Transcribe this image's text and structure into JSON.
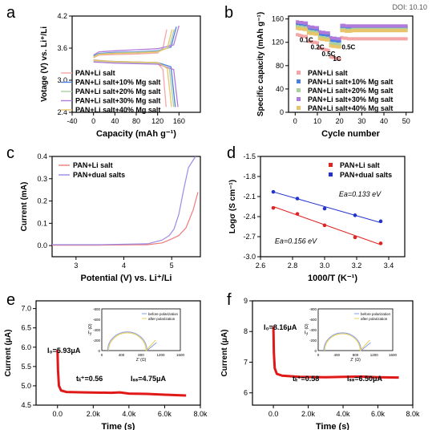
{
  "doi": "DOI: 10.10",
  "chart_data": [
    {
      "panel": "a",
      "type": "line",
      "xlabel": "Capacity (mAh g⁻¹)",
      "ylabel": "Votage (V) vs. Li⁺/Li",
      "xlim": [
        -40,
        200
      ],
      "ylim": [
        2.4,
        4.2
      ],
      "xticks": [
        "-40",
        "0",
        "40",
        "80",
        "120",
        "160"
      ],
      "yticks": [
        "2.4",
        "3.0",
        "3.6",
        "4.2"
      ],
      "legend_position": "bottom-left",
      "colors": [
        "#f4a6a6",
        "#4a7fe0",
        "#a9d19e",
        "#b07adb",
        "#e8c56a"
      ],
      "series": [
        {
          "name": "PAN+Li salt",
          "charge": [
            [
              0,
              3.42
            ],
            [
              10,
              3.47
            ],
            [
              40,
              3.48
            ],
            [
              80,
              3.49
            ],
            [
              120,
              3.51
            ],
            [
              130,
              3.6
            ],
            [
              137,
              3.95
            ]
          ],
          "discharge": [
            [
              0,
              3.38
            ],
            [
              40,
              3.35
            ],
            [
              80,
              3.34
            ],
            [
              120,
              3.32
            ],
            [
              130,
              3.2
            ],
            [
              136,
              2.5
            ]
          ]
        },
        {
          "name": "PAN+Li salt+10% Mg salt",
          "charge": [
            [
              0,
              3.45
            ],
            [
              10,
              3.5
            ],
            [
              40,
              3.52
            ],
            [
              80,
              3.53
            ],
            [
              120,
              3.55
            ],
            [
              145,
              3.62
            ],
            [
              155,
              4.0
            ]
          ],
          "discharge": [
            [
              0,
              3.37
            ],
            [
              40,
              3.35
            ],
            [
              80,
              3.34
            ],
            [
              120,
              3.33
            ],
            [
              145,
              3.25
            ],
            [
              153,
              2.5
            ]
          ]
        },
        {
          "name": "PAN+Li salt+20% Mg salt",
          "charge": [
            [
              0,
              3.44
            ],
            [
              10,
              3.49
            ],
            [
              40,
              3.51
            ],
            [
              80,
              3.52
            ],
            [
              120,
              3.54
            ],
            [
              142,
              3.62
            ],
            [
              151,
              3.95
            ]
          ],
          "discharge": [
            [
              0,
              3.36
            ],
            [
              40,
              3.34
            ],
            [
              80,
              3.33
            ],
            [
              120,
              3.32
            ],
            [
              142,
              3.22
            ],
            [
              150,
              2.5
            ]
          ]
        },
        {
          "name": "PAN+Li salt+30% Mg salt",
          "charge": [
            [
              0,
              3.47
            ],
            [
              10,
              3.53
            ],
            [
              40,
              3.55
            ],
            [
              80,
              3.57
            ],
            [
              120,
              3.59
            ],
            [
              150,
              3.66
            ],
            [
              160,
              4.02
            ]
          ],
          "discharge": [
            [
              0,
              3.34
            ],
            [
              40,
              3.32
            ],
            [
              80,
              3.31
            ],
            [
              120,
              3.3
            ],
            [
              150,
              3.2
            ],
            [
              158,
              2.5
            ]
          ]
        },
        {
          "name": "PAN+Li salt+40% Mg salt",
          "charge": [
            [
              0,
              3.43
            ],
            [
              10,
              3.48
            ],
            [
              40,
              3.5
            ],
            [
              80,
              3.51
            ],
            [
              120,
              3.53
            ],
            [
              138,
              3.6
            ],
            [
              147,
              3.95
            ]
          ],
          "discharge": [
            [
              0,
              3.37
            ],
            [
              40,
              3.35
            ],
            [
              80,
              3.34
            ],
            [
              120,
              3.33
            ],
            [
              138,
              3.22
            ],
            [
              146,
              2.5
            ]
          ]
        }
      ]
    },
    {
      "panel": "b",
      "type": "scatter",
      "xlabel": "Cycle number",
      "ylabel": "Specific capacity (mAh g⁻¹)",
      "xlim": [
        -3,
        53
      ],
      "ylim": [
        0,
        165
      ],
      "xticks": [
        "0",
        "10",
        "20",
        "30",
        "40",
        "50"
      ],
      "yticks": [
        "0",
        "40",
        "80",
        "120",
        "160"
      ],
      "legend_position": "bottom-right",
      "rate_labels": [
        "0.1C",
        "0.2C",
        "0.5C",
        "1C",
        "0.5C"
      ],
      "colors": [
        "#f4a6a6",
        "#4a7fe0",
        "#a9d19e",
        "#b07adb",
        "#e8c56a"
      ],
      "series": [
        {
          "name": "PAN+Li salt",
          "blocks": [
            [
              133,
              132,
              131,
              130,
              130
            ],
            [
              122,
              121,
              120,
              120,
              119
            ],
            [
              110,
              109,
              108,
              107,
              106
            ],
            [
              95,
              94,
              93,
              92,
              91
            ],
            [
              128,
              127,
              127,
              126,
              126
            ]
          ],
          "tail": 126
        },
        {
          "name": "PAN+Li salt+10% Mg salt",
          "blocks": [
            [
              150,
              149,
              149,
              148,
              148
            ],
            [
              143,
              142,
              142,
              141,
              141
            ],
            [
              134,
              133,
              133,
              132,
              132
            ],
            [
              124,
              123,
              123,
              122,
              122
            ],
            [
              145,
              145,
              144,
              144,
              144
            ]
          ],
          "tail": 145
        },
        {
          "name": "PAN+Li salt+20% Mg salt",
          "blocks": [
            [
              147,
              146,
              146,
              145,
              145
            ],
            [
              139,
              138,
              138,
              137,
              137
            ],
            [
              129,
              128,
              128,
              127,
              127
            ],
            [
              118,
              117,
              117,
              116,
              116
            ],
            [
              142,
              142,
              141,
              141,
              141
            ]
          ],
          "tail": 142
        },
        {
          "name": "PAN+Li salt+30% Mg salt",
          "blocks": [
            [
              155,
              154,
              154,
              153,
              153
            ],
            [
              147,
              146,
              146,
              145,
              145
            ],
            [
              138,
              137,
              137,
              136,
              136
            ],
            [
              128,
              127,
              127,
              126,
              126
            ],
            [
              149,
              149,
              148,
              148,
              148
            ]
          ],
          "tail": 148
        },
        {
          "name": "PAN+Li salt+40% Mg salt",
          "blocks": [
            [
              144,
              143,
              143,
              142,
              142
            ],
            [
              136,
              135,
              135,
              134,
              134
            ],
            [
              126,
              125,
              125,
              124,
              124
            ],
            [
              114,
              113,
              113,
              112,
              112
            ],
            [
              140,
              140,
              139,
              139,
              139
            ]
          ],
          "tail": 140
        }
      ]
    },
    {
      "panel": "c",
      "type": "line",
      "xlabel": "Potential (V) vs. Li⁺/Li",
      "ylabel": "Current (mA)",
      "xlim": [
        2.5,
        5.6
      ],
      "ylim": [
        -0.05,
        0.4
      ],
      "xticks": [
        "3",
        "4",
        "5"
      ],
      "yticks": [
        "0.0",
        "0.1",
        "0.2",
        "0.3",
        "0.4"
      ],
      "legend_position": "top-left",
      "colors": [
        "#f07a7a",
        "#9a8ce6"
      ],
      "series": [
        {
          "name": "PAN+Li salt",
          "points": [
            [
              2.5,
              0.002
            ],
            [
              3.5,
              0.002
            ],
            [
              4.5,
              0.004
            ],
            [
              4.8,
              0.012
            ],
            [
              5.0,
              0.03
            ],
            [
              5.15,
              0.045
            ],
            [
              5.3,
              0.08
            ],
            [
              5.45,
              0.16
            ],
            [
              5.55,
              0.24
            ]
          ]
        },
        {
          "name": "PAN+dual salts",
          "points": [
            [
              2.5,
              0.004
            ],
            [
              3.5,
              0.004
            ],
            [
              4.5,
              0.008
            ],
            [
              4.8,
              0.025
            ],
            [
              4.95,
              0.045
            ],
            [
              5.05,
              0.075
            ],
            [
              5.15,
              0.14
            ],
            [
              5.25,
              0.25
            ],
            [
              5.35,
              0.35
            ],
            [
              5.5,
              0.4
            ]
          ]
        }
      ]
    },
    {
      "panel": "d",
      "type": "scatter",
      "xlabel": "1000/T (K⁻¹)",
      "ylabel": "Logσ (S cm⁻¹)",
      "xlim": [
        2.6,
        3.5
      ],
      "ylim": [
        -3.0,
        -1.5
      ],
      "xticks": [
        "2.6",
        "2.8",
        "3.0",
        "3.2",
        "3.4"
      ],
      "yticks": [
        "-3.0",
        "-2.7",
        "-2.4",
        "-2.1",
        "-1.8",
        "-1.5"
      ],
      "legend_position": "top-right",
      "colors": [
        "#e02424",
        "#2233cc"
      ],
      "annotations": [
        {
          "text": "Ea=0.133 eV",
          "x": 3.22,
          "y": -2.1
        },
        {
          "text": "Ea=0.156 eV",
          "x": 2.82,
          "y": -2.8
        }
      ],
      "series": [
        {
          "name": "PAN+Li salt",
          "points": [
            [
              2.68,
              -2.27
            ],
            [
              2.83,
              -2.36
            ],
            [
              3.0,
              -2.53
            ],
            [
              3.19,
              -2.71
            ],
            [
              3.35,
              -2.8
            ]
          ],
          "fit": [
            [
              2.68,
              -2.25
            ],
            [
              3.35,
              -2.82
            ]
          ]
        },
        {
          "name": "PAN+dual salts",
          "points": [
            [
              2.68,
              -2.03
            ],
            [
              2.83,
              -2.13
            ],
            [
              3.0,
              -2.28
            ],
            [
              3.19,
              -2.38
            ],
            [
              3.35,
              -2.47
            ]
          ],
          "fit": [
            [
              2.68,
              -2.03
            ],
            [
              3.35,
              -2.49
            ]
          ]
        }
      ]
    },
    {
      "panel": "e",
      "type": "line",
      "xlabel": "Time (s)",
      "ylabel": "Current (μA)",
      "xlim": [
        -1200,
        8000
      ],
      "ylim": [
        4.5,
        7.2
      ],
      "xticks": [
        "0.0",
        "2.0k",
        "4.0k",
        "6.0k",
        "8.0k"
      ],
      "yticks": [
        "4.5",
        "5.0",
        "5.5",
        "6.0",
        "6.5",
        "7.0"
      ],
      "colors": [
        "#e01818"
      ],
      "annotations": [
        "I₀=5.93μA",
        "tₗᵢ⁺=0.56",
        "Iₛₛ=4.75μA"
      ],
      "series": [
        {
          "name": "",
          "points": [
            [
              0,
              5.93
            ],
            [
              30,
              5.4
            ],
            [
              80,
              5.0
            ],
            [
              200,
              4.88
            ],
            [
              500,
              4.84
            ],
            [
              1500,
              4.83
            ],
            [
              3000,
              4.82
            ],
            [
              3500,
              4.83
            ],
            [
              4000,
              4.8
            ],
            [
              5000,
              4.79
            ],
            [
              6000,
              4.77
            ],
            [
              7200,
              4.75
            ]
          ]
        }
      ],
      "inset": {
        "xlabel": "Z' (Ω)",
        "ylabel": "-Z'' (Ω)",
        "xticks": [
          "0",
          "400",
          "800",
          "1200",
          "1600"
        ],
        "yticks": [
          "0",
          "-200",
          "-400",
          "-600",
          "-800"
        ],
        "legend": [
          "before polarization",
          "after polarization"
        ],
        "colors": [
          "#8a9be8",
          "#e8d050"
        ]
      }
    },
    {
      "panel": "f",
      "type": "line",
      "xlabel": "Time (s)",
      "ylabel": "Current (μA)",
      "xlim": [
        -1200,
        8000
      ],
      "ylim": [
        5.6,
        9.0
      ],
      "xticks": [
        "0.0",
        "2.0k",
        "4.0k",
        "6.0k",
        "8.0k"
      ],
      "yticks": [
        "6",
        "7",
        "8",
        "9"
      ],
      "colors": [
        "#e01818"
      ],
      "annotations": [
        "I₀=8.16μA",
        "tₗᵢ⁺=0.58",
        "Iₛₛ=6.50μA"
      ],
      "series": [
        {
          "name": "",
          "points": [
            [
              0,
              8.16
            ],
            [
              30,
              7.3
            ],
            [
              80,
              6.8
            ],
            [
              200,
              6.62
            ],
            [
              500,
              6.56
            ],
            [
              1500,
              6.52
            ],
            [
              3000,
              6.51
            ],
            [
              4000,
              6.52
            ],
            [
              5000,
              6.53
            ],
            [
              6000,
              6.51
            ],
            [
              7200,
              6.5
            ]
          ]
        }
      ],
      "inset": {
        "xlabel": "Z' (Ω)",
        "ylabel": "-Z'' (Ω)",
        "xticks": [
          "0",
          "400",
          "800",
          "1200",
          "1600"
        ],
        "yticks": [
          "0",
          "-200",
          "-400",
          "-600",
          "-800"
        ],
        "legend": [
          "before polarization",
          "after polarization"
        ],
        "colors": [
          "#8a9be8",
          "#e8d050"
        ]
      }
    }
  ]
}
